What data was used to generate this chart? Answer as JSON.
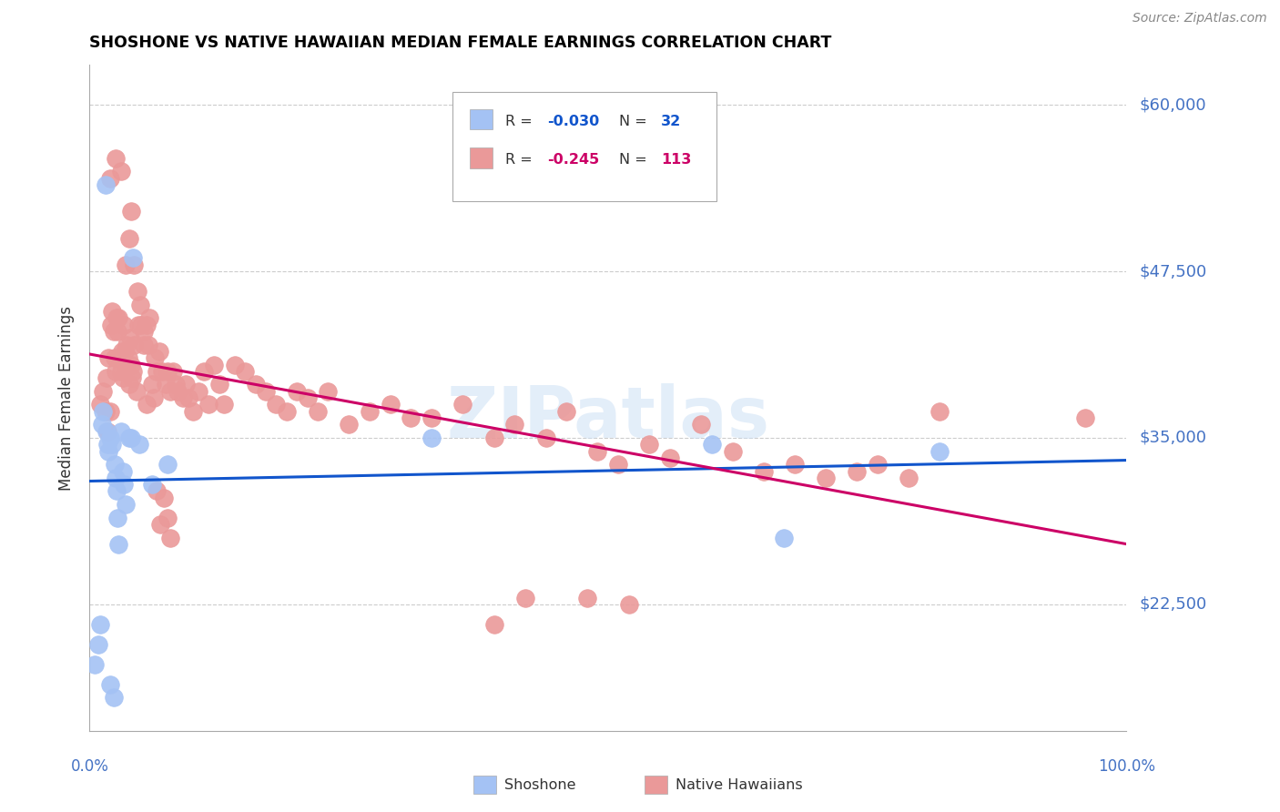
{
  "title": "SHOSHONE VS NATIVE HAWAIIAN MEDIAN FEMALE EARNINGS CORRELATION CHART",
  "source": "Source: ZipAtlas.com",
  "ylabel": "Median Female Earnings",
  "ylim": [
    13000,
    63000
  ],
  "xlim": [
    0.0,
    1.0
  ],
  "shoshone_color": "#a4c2f4",
  "native_hawaiian_color": "#ea9999",
  "regression_shoshone_color": "#1155cc",
  "regression_native_color": "#cc0066",
  "ytick_positions": [
    22500,
    35000,
    47500,
    60000
  ],
  "ytick_labels": [
    "$22,500",
    "$35,000",
    "$47,500",
    "$60,000"
  ],
  "watermark": "ZIPatlas",
  "shoshone_x": [
    0.005,
    0.008,
    0.01,
    0.012,
    0.013,
    0.015,
    0.016,
    0.017,
    0.018,
    0.02,
    0.02,
    0.022,
    0.023,
    0.024,
    0.025,
    0.026,
    0.027,
    0.028,
    0.03,
    0.032,
    0.033,
    0.035,
    0.038,
    0.04,
    0.042,
    0.048,
    0.06,
    0.075,
    0.33,
    0.6,
    0.67,
    0.82
  ],
  "shoshone_y": [
    18000,
    19500,
    21000,
    36000,
    37000,
    54000,
    35500,
    34500,
    34000,
    35000,
    16500,
    34500,
    15500,
    33000,
    32000,
    31000,
    29000,
    27000,
    35500,
    32500,
    31500,
    30000,
    35000,
    35000,
    48500,
    34500,
    31500,
    33000,
    35000,
    34500,
    27500,
    34000
  ],
  "native_hawaiian_x": [
    0.01,
    0.013,
    0.015,
    0.016,
    0.017,
    0.018,
    0.02,
    0.021,
    0.022,
    0.023,
    0.024,
    0.025,
    0.026,
    0.027,
    0.028,
    0.029,
    0.03,
    0.031,
    0.032,
    0.033,
    0.034,
    0.035,
    0.036,
    0.037,
    0.038,
    0.039,
    0.04,
    0.041,
    0.042,
    0.043,
    0.045,
    0.047,
    0.05,
    0.052,
    0.055,
    0.057,
    0.06,
    0.063,
    0.065,
    0.067,
    0.07,
    0.073,
    0.075,
    0.078,
    0.08,
    0.083,
    0.085,
    0.09,
    0.093,
    0.095,
    0.1,
    0.105,
    0.11,
    0.115,
    0.12,
    0.125,
    0.13,
    0.14,
    0.15,
    0.16,
    0.17,
    0.18,
    0.19,
    0.2,
    0.21,
    0.22,
    0.23,
    0.25,
    0.27,
    0.29,
    0.31,
    0.33,
    0.36,
    0.39,
    0.41,
    0.44,
    0.46,
    0.49,
    0.51,
    0.54,
    0.56,
    0.59,
    0.62,
    0.65,
    0.68,
    0.71,
    0.74,
    0.76,
    0.79,
    0.82,
    0.035,
    0.038,
    0.04,
    0.043,
    0.046,
    0.049,
    0.052,
    0.055,
    0.058,
    0.062,
    0.065,
    0.068,
    0.072,
    0.075,
    0.078,
    0.02,
    0.025,
    0.03,
    0.48,
    0.52,
    0.39,
    0.42,
    0.96
  ],
  "native_hawaiian_y": [
    37500,
    38500,
    37000,
    39500,
    35500,
    41000,
    37000,
    43500,
    44500,
    43000,
    41000,
    40000,
    44000,
    43000,
    44000,
    41000,
    40000,
    41500,
    39500,
    43500,
    41500,
    40500,
    42000,
    41000,
    39000,
    42500,
    40500,
    39500,
    40000,
    42000,
    38500,
    43500,
    43500,
    42000,
    37500,
    42000,
    39000,
    41000,
    40000,
    41500,
    40000,
    39000,
    40000,
    38500,
    40000,
    39000,
    38500,
    38000,
    39000,
    38000,
    37000,
    38500,
    40000,
    37500,
    40500,
    39000,
    37500,
    40500,
    40000,
    39000,
    38500,
    37500,
    37000,
    38500,
    38000,
    37000,
    38500,
    36000,
    37000,
    37500,
    36500,
    36500,
    37500,
    35000,
    36000,
    35000,
    37000,
    34000,
    33000,
    34500,
    33500,
    36000,
    34000,
    32500,
    33000,
    32000,
    32500,
    33000,
    32000,
    37000,
    48000,
    50000,
    52000,
    48000,
    46000,
    45000,
    43000,
    43500,
    44000,
    38000,
    31000,
    28500,
    30500,
    29000,
    27500,
    54500,
    56000,
    55000,
    23000,
    22500,
    21000,
    23000,
    36500
  ]
}
